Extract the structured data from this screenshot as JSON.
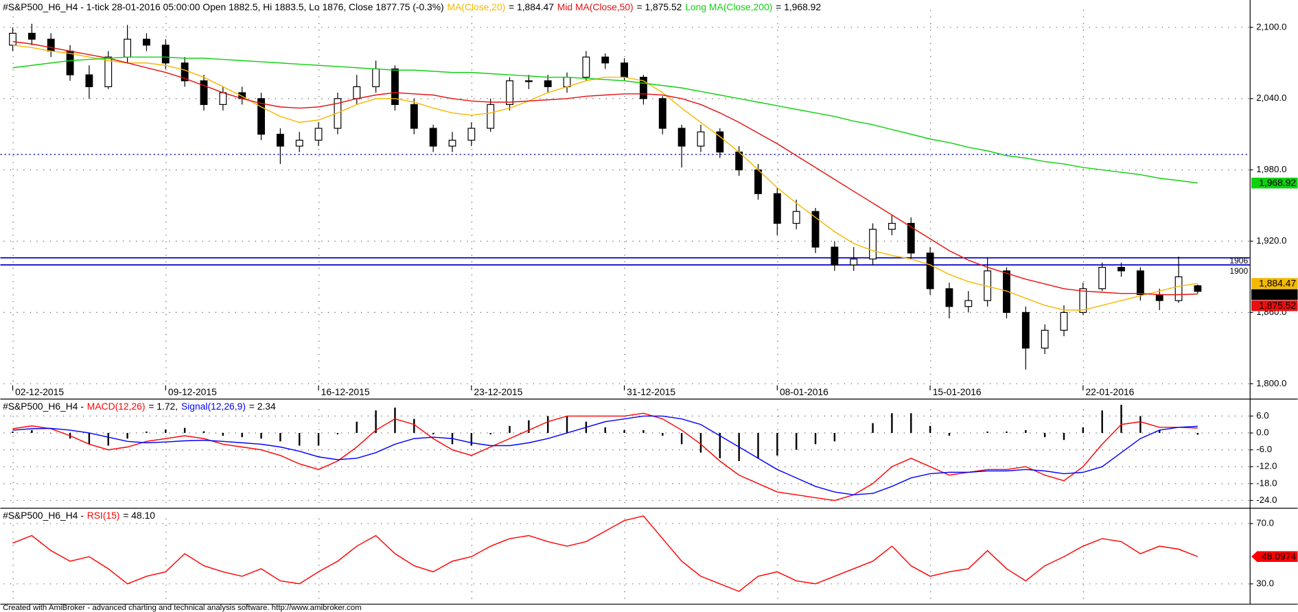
{
  "chart_data": [
    {
      "type": "candlestick",
      "title": "#S&P500_H6_H4 - 1-tick 28-01-2016 05:00:00 Open 1882.5, Hi 1883.5, Lo 1876, Close 1877.75 (-0.3%)",
      "categories": [
        "02-12-2015",
        null,
        null,
        null,
        null,
        null,
        null,
        null,
        "09-12-2015",
        null,
        null,
        null,
        null,
        null,
        null,
        null,
        "16-12-2015",
        null,
        null,
        null,
        null,
        null,
        null,
        null,
        "23-12-2015",
        null,
        null,
        null,
        null,
        null,
        null,
        null,
        "31-12-2015",
        null,
        null,
        null,
        null,
        null,
        null,
        null,
        "08-01-2016",
        null,
        null,
        null,
        null,
        null,
        null,
        null,
        "15-01-2016",
        null,
        null,
        null,
        null,
        null,
        null,
        null,
        "22-01-2016",
        null,
        null,
        null,
        null,
        null,
        null
      ],
      "open": [
        2085,
        2095,
        2090,
        2080,
        2060,
        2050,
        2075,
        2090,
        2085,
        2070,
        2055,
        2035,
        2045,
        2040,
        2010,
        2000,
        2005,
        2015,
        2040,
        2050,
        2065,
        2035,
        2015,
        2000,
        2005,
        2015,
        2035,
        2055,
        2055,
        2050,
        2058,
        2075,
        2070,
        2058,
        2040,
        2015,
        2000,
        2012,
        1995,
        1980,
        1960,
        1935,
        1945,
        1915,
        1900,
        1905,
        1930,
        1935,
        1910,
        1880,
        1865,
        1870,
        1895,
        1860,
        1830,
        1845,
        1860,
        1880,
        1898,
        1895,
        1875,
        1870,
        1882.5
      ],
      "high": [
        2100,
        2103,
        2095,
        2085,
        2068,
        2080,
        2102,
        2095,
        2090,
        2075,
        2060,
        2050,
        2050,
        2045,
        2015,
        2012,
        2020,
        2045,
        2060,
        2072,
        2068,
        2040,
        2018,
        2012,
        2020,
        2040,
        2058,
        2060,
        2060,
        2062,
        2080,
        2078,
        2074,
        2060,
        2042,
        2018,
        2018,
        2015,
        2000,
        1985,
        1965,
        1955,
        1948,
        1920,
        1915,
        1935,
        1942,
        1940,
        1915,
        1885,
        1878,
        1906,
        1898,
        1865,
        1850,
        1866,
        1885,
        1902,
        1902,
        1898,
        1880,
        1907,
        1883.5
      ],
      "low": [
        2080,
        2085,
        2075,
        2055,
        2040,
        2048,
        2070,
        2080,
        2065,
        2050,
        2030,
        2030,
        2035,
        2005,
        1985,
        1995,
        2000,
        2010,
        2035,
        2045,
        2030,
        2010,
        1995,
        1995,
        2000,
        2012,
        2030,
        2048,
        2045,
        2045,
        2055,
        2065,
        2055,
        2035,
        2010,
        1982,
        1995,
        1990,
        1975,
        1955,
        1925,
        1930,
        1910,
        1895,
        1895,
        1900,
        1925,
        1905,
        1875,
        1855,
        1860,
        1865,
        1855,
        1812,
        1825,
        1840,
        1858,
        1878,
        1890,
        1870,
        1862,
        1868,
        1876
      ],
      "close": [
        2095,
        2090,
        2080,
        2060,
        2050,
        2075,
        2090,
        2085,
        2070,
        2055,
        2035,
        2045,
        2040,
        2010,
        2000,
        2005,
        2015,
        2040,
        2050,
        2065,
        2035,
        2015,
        2000,
        2005,
        2015,
        2035,
        2055,
        2055,
        2050,
        2058,
        2075,
        2070,
        2058,
        2040,
        2015,
        2000,
        2012,
        1995,
        1980,
        1960,
        1935,
        1945,
        1915,
        1900,
        1905,
        1930,
        1935,
        1910,
        1880,
        1865,
        1870,
        1895,
        1860,
        1830,
        1845,
        1860,
        1880,
        1898,
        1895,
        1875,
        1870,
        1890,
        1877.75
      ],
      "close_label": "1,877.75",
      "up_color": "#ffffff",
      "down_color": "#000000",
      "series": [
        {
          "name": "MA(Close,20)",
          "color": "#f5b800",
          "legend_label": "= 1,884.47",
          "value_label": "1,884.47",
          "values": [
            2085,
            2083,
            2080,
            2078,
            2075,
            2072,
            2070,
            2070,
            2068,
            2064,
            2058,
            2050,
            2042,
            2033,
            2025,
            2020,
            2022,
            2028,
            2035,
            2040,
            2040,
            2037,
            2032,
            2028,
            2026,
            2028,
            2032,
            2038,
            2045,
            2050,
            2055,
            2058,
            2058,
            2055,
            2045,
            2032,
            2020,
            2008,
            1995,
            1980,
            1965,
            1952,
            1940,
            1928,
            1918,
            1912,
            1908,
            1905,
            1900,
            1892,
            1886,
            1882,
            1878,
            1872,
            1866,
            1862,
            1862,
            1866,
            1870,
            1874,
            1878,
            1882,
            1884.47
          ]
        },
        {
          "name": "Mid MA(Close,50)",
          "color": "#e81010",
          "legend_label": "= 1,875.52",
          "value_label": "1,875.52",
          "values": [
            2088,
            2086,
            2083,
            2080,
            2077,
            2074,
            2070,
            2066,
            2062,
            2057,
            2051,
            2045,
            2040,
            2036,
            2033,
            2032,
            2033,
            2036,
            2040,
            2043,
            2045,
            2044,
            2043,
            2040,
            2038,
            2037,
            2037,
            2038,
            2039,
            2040,
            2042,
            2043,
            2044,
            2044,
            2043,
            2040,
            2035,
            2028,
            2020,
            2011,
            2002,
            1992,
            1982,
            1972,
            1962,
            1952,
            1942,
            1932,
            1922,
            1912,
            1904,
            1898,
            1893,
            1888,
            1884,
            1880,
            1878,
            1877,
            1876,
            1876,
            1875,
            1875,
            1875.52
          ]
        },
        {
          "name": "Long MA(Close,200)",
          "color": "#10d010",
          "legend_label": "= 1,968.92",
          "value_label": "1,968.92",
          "values": [
            2066,
            2068,
            2070,
            2072,
            2073,
            2074,
            2075,
            2075,
            2075,
            2074,
            2074,
            2073,
            2072,
            2071,
            2070,
            2069,
            2068,
            2067,
            2066,
            2065,
            2064,
            2064,
            2063,
            2062,
            2062,
            2061,
            2060,
            2059,
            2058,
            2058,
            2057,
            2056,
            2055,
            2053,
            2051,
            2049,
            2046,
            2043,
            2040,
            2037,
            2034,
            2031,
            2028,
            2025,
            2021,
            2018,
            2014,
            2010,
            2006,
            2003,
            1999,
            1996,
            1992,
            1990,
            1987,
            1985,
            1982,
            1980,
            1978,
            1976,
            1973,
            1971,
            1968.92
          ]
        }
      ],
      "hlines": [
        {
          "value": 1906,
          "label": "1906"
        },
        {
          "value": 1900,
          "label": "1900"
        }
      ],
      "hline_color": "#0000cc",
      "dotted_line": 1993,
      "ylim": [
        1798.6,
        2123
      ],
      "yticks": [
        {
          "value": 1800,
          "label": "1,800.0"
        },
        {
          "value": 1860,
          "label": "1,860.0"
        },
        {
          "value": 1920,
          "label": "1,920.0"
        },
        {
          "value": 1980,
          "label": "1,980.0"
        },
        {
          "value": 2040,
          "label": "2,040.0"
        },
        {
          "value": 2100,
          "label": "2,100.0"
        }
      ],
      "grid": true
    },
    {
      "type": "combo",
      "title": "#S&P500_H6_H4 -",
      "series": [
        {
          "kind": "bar",
          "color": "#000000",
          "values": [
            0.5,
            1,
            -0.1,
            -2,
            -4,
            -4.5,
            -2,
            0.5,
            1.2,
            1.8,
            0.6,
            -1,
            -1.5,
            -2,
            -3,
            -4.5,
            -4.5,
            -0.5,
            4,
            8,
            9,
            5,
            -0.5,
            -4,
            -4.5,
            -0.5,
            2.5,
            4.5,
            6,
            6,
            4,
            2,
            1,
            1,
            -1,
            -4,
            -7,
            -9,
            -10,
            -9,
            -8,
            -6,
            -4,
            -3,
            0,
            3.5,
            7,
            7,
            2.5,
            -1,
            0,
            0.5,
            0.5,
            1,
            -1.5,
            -2.5,
            2,
            8,
            10,
            6,
            1,
            0,
            -0.62
          ]
        },
        {
          "kind": "line",
          "name": "MACD(12,26)",
          "color": "#ff0000",
          "legend_label": "= 1.72,",
          "values": [
            1.5,
            2.5,
            1.5,
            -1,
            -4,
            -6,
            -5,
            -3,
            -2,
            -1,
            -2,
            -4,
            -5,
            -6,
            -8,
            -11,
            -13,
            -10,
            -5,
            1,
            5,
            3,
            -2,
            -6,
            -8,
            -5,
            -2,
            1,
            4,
            6,
            6,
            6,
            6,
            7,
            5,
            1,
            -4,
            -10,
            -15,
            -18,
            -21,
            -22,
            -23,
            -24,
            -22,
            -18,
            -12,
            -9,
            -12,
            -15,
            -14,
            -13,
            -13,
            -12,
            -15,
            -17,
            -12,
            -4,
            3,
            4,
            2,
            2,
            1.72
          ]
        },
        {
          "kind": "line",
          "name": "Signal(12,26,9)",
          "color": "#0000ff",
          "legend_label": "= 2.34",
          "values": [
            1,
            1.5,
            1.6,
            1,
            0,
            -1.5,
            -3,
            -3.5,
            -3.2,
            -2.8,
            -2.6,
            -3,
            -3.5,
            -4,
            -5,
            -6.5,
            -8.5,
            -9.5,
            -9,
            -7,
            -4,
            -2,
            -1.5,
            -2,
            -3.5,
            -4.5,
            -4.5,
            -3.5,
            -2,
            0,
            2,
            4,
            5,
            6,
            6,
            5,
            3,
            -1,
            -5,
            -9,
            -13,
            -16,
            -19,
            -21,
            -22,
            -21.5,
            -19,
            -16,
            -14.5,
            -14,
            -14,
            -13.5,
            -13.5,
            -13,
            -13.5,
            -14.5,
            -14,
            -12,
            -7,
            -2,
            1,
            2,
            2.34
          ]
        }
      ],
      "ylim": [
        -26.6,
        11.9
      ],
      "yticks": [
        {
          "value": 6,
          "label": "6.0"
        },
        {
          "value": 0,
          "label": "0.0"
        },
        {
          "value": -6,
          "label": "-6.0"
        },
        {
          "value": -12,
          "label": "-12.0"
        },
        {
          "value": -18,
          "label": "-18.0"
        },
        {
          "value": -24,
          "label": "-24.0"
        }
      ],
      "grid": true
    },
    {
      "type": "line",
      "title": "#S&P500_H6_H4 -",
      "series": [
        {
          "kind": "line",
          "name": "RSI(15)",
          "color": "#ff0000",
          "legend_label": "= 48.10",
          "value_label": "48.0974",
          "values": [
            57,
            62,
            52,
            45,
            48,
            40,
            30,
            35,
            38,
            50,
            42,
            38,
            35,
            40,
            32,
            30,
            38,
            45,
            55,
            62,
            50,
            42,
            38,
            45,
            48,
            55,
            60,
            62,
            58,
            55,
            58,
            65,
            72,
            75,
            60,
            45,
            35,
            30,
            25,
            35,
            38,
            32,
            30,
            35,
            40,
            45,
            55,
            42,
            35,
            38,
            40,
            52,
            40,
            32,
            42,
            48,
            55,
            60,
            58,
            50,
            55,
            53,
            48.0974
          ]
        }
      ],
      "ylim": [
        16.8,
        79.9
      ],
      "yticks": [
        {
          "value": 30,
          "label": "30.0"
        },
        {
          "value": 70,
          "label": "70.0"
        }
      ],
      "grid": true
    }
  ],
  "footer": "Created with AmiBroker - advanced charting and technical analysis software. http://www.amibroker.com"
}
